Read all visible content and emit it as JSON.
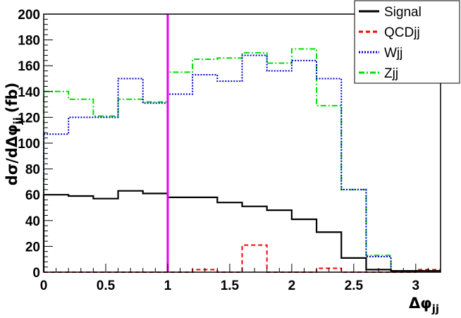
{
  "chart_data": {
    "type": "line",
    "step": true,
    "xlabel": "Δφ",
    "xlabel_sub": "jj",
    "ylabel_main": "dσ/dΔφ",
    "ylabel_sub": "jj",
    "ylabel_unit": "(fb)",
    "xlim": [
      0,
      3.2
    ],
    "ylim": [
      0,
      200
    ],
    "x_ticks": [
      "0",
      "0.5",
      "1",
      "1.5",
      "2",
      "2.5",
      "3"
    ],
    "x_tick_values": [
      0,
      0.5,
      1,
      1.5,
      2,
      2.5,
      3
    ],
    "y_ticks": [
      "0",
      "20",
      "40",
      "60",
      "80",
      "100",
      "120",
      "140",
      "160",
      "180",
      "200"
    ],
    "y_tick_values": [
      0,
      20,
      40,
      60,
      80,
      100,
      120,
      140,
      160,
      180,
      200
    ],
    "bin_edges": [
      0,
      0.2,
      0.4,
      0.6,
      0.8,
      1.0,
      1.2,
      1.4,
      1.6,
      1.8,
      2.0,
      2.2,
      2.4,
      2.6,
      2.8,
      3.0,
      3.2
    ],
    "cut_line": {
      "x": 1.0,
      "color": "#ee00ee"
    },
    "legend_position": "top-right",
    "grid": false,
    "series": [
      {
        "name": "Signal",
        "color": "#000000",
        "style": "solid",
        "values": [
          60,
          59,
          57,
          63,
          61,
          58,
          58,
          54,
          51,
          48,
          41,
          31,
          11,
          2,
          1,
          1
        ]
      },
      {
        "name": "QCDjj",
        "color": "#ff0000",
        "style": "dashed",
        "values": [
          0,
          0,
          0,
          0,
          0,
          0,
          2,
          0,
          21,
          0,
          0,
          3,
          0,
          0,
          0,
          2
        ]
      },
      {
        "name": "Wjj",
        "color": "#0000cc",
        "style": "dotted",
        "values": [
          107,
          120,
          120,
          150,
          131,
          138,
          153,
          148,
          168,
          156,
          164,
          150,
          64,
          12,
          1,
          1
        ]
      },
      {
        "name": "Zjj",
        "color": "#00dd00",
        "style": "dashdot",
        "values": [
          140,
          134,
          121,
          134,
          132,
          155,
          165,
          166,
          170,
          162,
          173,
          129,
          64,
          13,
          1,
          1
        ]
      }
    ]
  }
}
